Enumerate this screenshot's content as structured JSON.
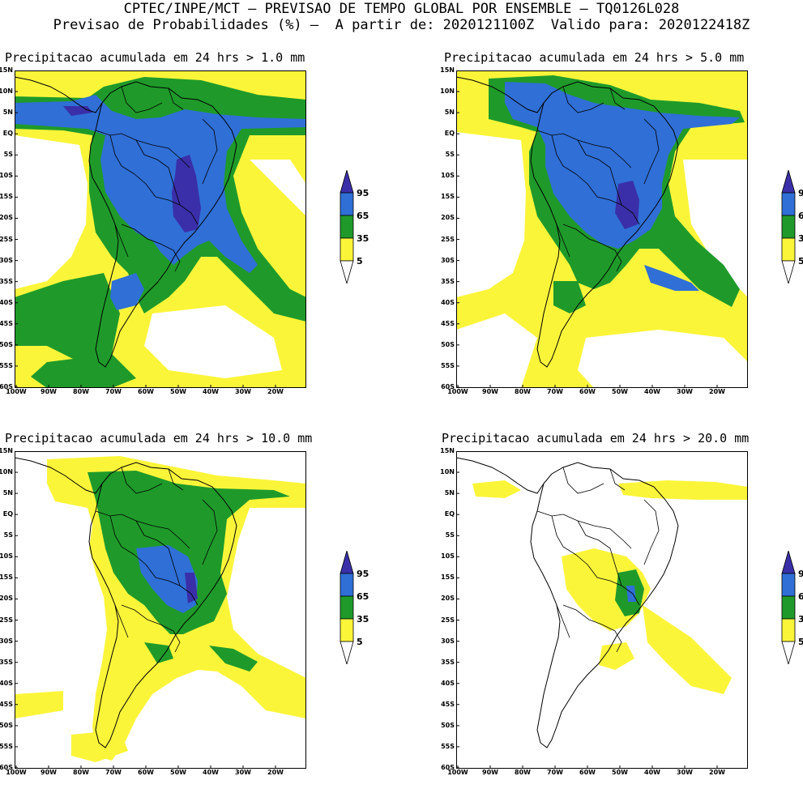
{
  "header": {
    "line1": "CPTEC/INPE/MCT — PREVISAO DE TEMPO GLOBAL POR ENSEMBLE — TQ0126L028",
    "line2": "Previsao de Probabilidades (%) –  A partir de: 2020121100Z  Valido para: 2020122418Z"
  },
  "panels": [
    {
      "title": "Precipitacao acumulada em 24 hrs > 1.0 mm",
      "level": 1
    },
    {
      "title": "Precipitacao acumulada em 24 hrs > 5.0 mm",
      "level": 2
    },
    {
      "title": "Precipitacao acumulada em 24 hrs > 10.0 mm",
      "level": 3
    },
    {
      "title": "Precipitacao acumulada em 24 hrs > 20.0 mm",
      "level": 4
    }
  ],
  "lat_ticks": [
    "15N",
    "10N",
    "5N",
    "EQ",
    "5S",
    "10S",
    "15S",
    "20S",
    "25S",
    "30S",
    "35S",
    "40S",
    "45S",
    "50S",
    "55S",
    "60S"
  ],
  "lon_ticks": [
    "100W",
    "90W",
    "80W",
    "70W",
    "60W",
    "50W",
    "40W",
    "30W",
    "20W"
  ],
  "colorbar": {
    "labels": [
      "95",
      "65",
      "35",
      "5"
    ],
    "colors": {
      "c95": "#3a2fa8",
      "c65": "#2f6fd6",
      "c35": "#1f9a2a",
      "c5": "#fbf53a"
    }
  }
}
